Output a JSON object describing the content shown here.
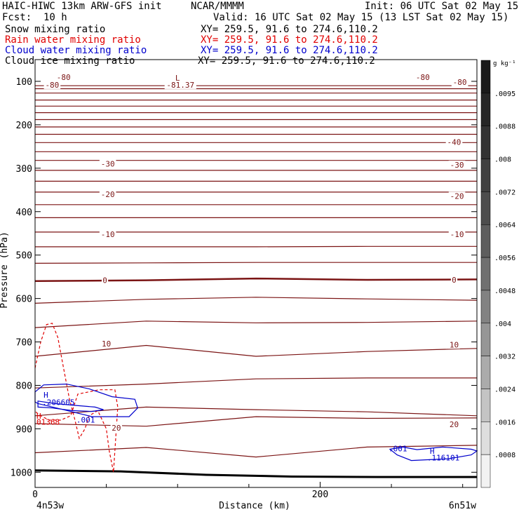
{
  "header": {
    "model": "HAIC-HIWC 13km ARW-GFS init",
    "org": "NCAR/MMMM",
    "init": "Init: 06 UTC Sat 02 May 15",
    "fcst_label": "Fcst:",
    "fcst_value": "10 h",
    "valid": "Valid: 16 UTC Sat 02 May 15 (13 LST Sat 02 May 15)",
    "fields": [
      {
        "name": "Snow mixing ratio",
        "xy": "XY= 259.5, 91.6 to 274.6,110.2",
        "color": "#000000"
      },
      {
        "name": "Rain water mixing ratio",
        "xy": "XY= 259.5, 91.6 to 274.6,110.2",
        "color": "#e00000"
      },
      {
        "name": "Cloud water mixing ratio",
        "xy": "XY= 259.5, 91.6 to 274.6,110.2",
        "color": "#0000cc"
      },
      {
        "name": "Cloud ice mixing ratio",
        "xy": "XY= 259.5, 91.6 to 274.6,110.2",
        "color": "#000000"
      }
    ]
  },
  "chart_data": {
    "type": "contour",
    "xlabel": "Distance (km)",
    "ylabel": "Pressure (hPa)",
    "xlim": [
      0,
      310
    ],
    "ylim": [
      1035,
      50
    ],
    "x_ticks": [
      {
        "v": 0,
        "label": "0"
      },
      {
        "v": 200,
        "label": "200"
      }
    ],
    "y_ticks": [
      {
        "v": 100,
        "label": "100"
      },
      {
        "v": 200,
        "label": "200"
      },
      {
        "v": 300,
        "label": "300"
      },
      {
        "v": 400,
        "label": "400"
      },
      {
        "v": 500,
        "label": "500"
      },
      {
        "v": 600,
        "label": "600"
      },
      {
        "v": 700,
        "label": "700"
      },
      {
        "v": 800,
        "label": "800"
      },
      {
        "v": 900,
        "label": "900"
      },
      {
        "v": 1000,
        "label": "1000"
      }
    ],
    "endpoint_left": "4n53w",
    "endpoint_right": "6n51w",
    "temperature_contours": [
      {
        "p": [
          110,
          110,
          110,
          110,
          110
        ]
      },
      {
        "p": [
          117,
          117,
          117,
          117,
          117
        ]
      },
      {
        "p": [
          127,
          127,
          127,
          127,
          127
        ]
      },
      {
        "p": [
          143,
          143,
          143,
          143,
          143
        ]
      },
      {
        "p": [
          157,
          157,
          157,
          157,
          157
        ]
      },
      {
        "p": [
          172,
          172,
          172,
          172,
          172
        ]
      },
      {
        "p": [
          188,
          188,
          188,
          188,
          188
        ]
      },
      {
        "p": [
          205,
          205,
          205,
          205,
          205
        ]
      },
      {
        "p": [
          222,
          222,
          222,
          222,
          222
        ]
      },
      {
        "p": [
          241,
          241,
          241,
          241,
          241
        ]
      },
      {
        "p": [
          262,
          262,
          262,
          262,
          262
        ]
      },
      {
        "p": [
          282,
          282,
          282,
          282,
          282
        ]
      },
      {
        "p": [
          305,
          305,
          305,
          305,
          305
        ]
      },
      {
        "p": [
          330,
          330,
          330,
          330,
          330
        ]
      },
      {
        "p": [
          355,
          355,
          355,
          355,
          355
        ]
      },
      {
        "p": [
          384,
          384,
          384,
          384,
          384
        ]
      },
      {
        "p": [
          414,
          414,
          414,
          414,
          414
        ]
      },
      {
        "p": [
          447,
          447,
          447,
          447,
          447
        ]
      },
      {
        "p": [
          481,
          481,
          481,
          480,
          480
        ]
      },
      {
        "p": [
          519,
          518,
          517,
          517,
          517
        ]
      },
      {
        "p": [
          560,
          558,
          554,
          557,
          556
        ],
        "bold": true
      },
      {
        "p": [
          611,
          602,
          597,
          601,
          604
        ]
      },
      {
        "p": [
          667,
          652,
          656,
          655,
          652
        ]
      },
      {
        "p": [
          733,
          708,
          733,
          722,
          715
        ]
      },
      {
        "p": [
          806,
          797,
          785,
          783,
          783
        ]
      },
      {
        "p": [
          870,
          850,
          856,
          861,
          870
        ]
      },
      {
        "p": [
          888,
          894,
          872,
          876,
          875
        ]
      },
      {
        "p": [
          955,
          943,
          965,
          942,
          938
        ]
      }
    ],
    "temperature_labels": [
      {
        "x": 20,
        "p": 90,
        "text": "-80"
      },
      {
        "x": 272,
        "p": 90,
        "text": "-80"
      },
      {
        "x": 12,
        "p": 108,
        "text": "-80"
      },
      {
        "x": 298,
        "p": 102,
        "text": "-80"
      },
      {
        "x": 294,
        "p": 240,
        "text": "-40"
      },
      {
        "x": 51,
        "p": 290,
        "text": "-30"
      },
      {
        "x": 296,
        "p": 292,
        "text": "-30"
      },
      {
        "x": 51,
        "p": 360,
        "text": "-20"
      },
      {
        "x": 296,
        "p": 364,
        "text": "-20"
      },
      {
        "x": 51,
        "p": 452,
        "text": "-10"
      },
      {
        "x": 296,
        "p": 452,
        "text": "-10"
      },
      {
        "x": 49,
        "p": 558,
        "text": "0"
      },
      {
        "x": 294,
        "p": 557,
        "text": "0"
      },
      {
        "x": 50,
        "p": 704,
        "text": "10"
      },
      {
        "x": 294,
        "p": 706,
        "text": "10"
      },
      {
        "x": 57,
        "p": 898,
        "text": "20"
      },
      {
        "x": 294,
        "p": 890,
        "text": "20"
      }
    ],
    "temperature_extrema": [
      {
        "x": 100,
        "p": 92,
        "text": "L"
      },
      {
        "x": 102,
        "p": 108,
        "text": "-81.37"
      }
    ],
    "terrain": [
      [
        0,
        996
      ],
      [
        60,
        998
      ],
      [
        120,
        1006
      ],
      [
        180,
        1010
      ],
      [
        240,
        1011
      ],
      [
        310,
        1011
      ]
    ],
    "rain_water": {
      "contour": [
        [
          0,
          760
        ],
        [
          4,
          700
        ],
        [
          8,
          660
        ],
        [
          12,
          657
        ],
        [
          16,
          690
        ],
        [
          20,
          760
        ],
        [
          24,
          830
        ],
        [
          28,
          880
        ],
        [
          31,
          922
        ],
        [
          35,
          900
        ],
        [
          38,
          870
        ],
        [
          44,
          858
        ],
        [
          50,
          900
        ],
        [
          52,
          950
        ],
        [
          55,
          1000
        ],
        [
          58,
          850
        ],
        [
          56,
          810
        ],
        [
          45,
          810
        ],
        [
          30,
          820
        ],
        [
          25,
          870
        ],
        [
          18,
          880
        ],
        [
          10,
          880
        ],
        [
          4,
          870
        ],
        [
          0,
          860
        ]
      ],
      "labels": [
        {
          "x": 0,
          "p": 870,
          "text": "H"
        },
        {
          "x": 0,
          "p": 884,
          "text": "01368"
        }
      ]
    },
    "cloud_water": {
      "contours": [
        [
          [
            0,
            815
          ],
          [
            6,
            799
          ],
          [
            22,
            797
          ],
          [
            38,
            808
          ],
          [
            54,
            826
          ],
          [
            70,
            832
          ],
          [
            72,
            852
          ],
          [
            66,
            872
          ],
          [
            40,
            872
          ],
          [
            15,
            852
          ],
          [
            2,
            842
          ],
          [
            0,
            838
          ]
        ],
        [
          [
            2,
            836
          ],
          [
            14,
            842
          ],
          [
            28,
            846
          ],
          [
            42,
            850
          ],
          [
            48,
            856
          ],
          [
            40,
            860
          ],
          [
            26,
            858
          ],
          [
            12,
            852
          ],
          [
            2,
            850
          ]
        ],
        [
          [
            249,
            947
          ],
          [
            258,
            942
          ],
          [
            268,
            948
          ],
          [
            286,
            942
          ],
          [
            306,
            947
          ],
          [
            310,
            951
          ],
          [
            306,
            960
          ],
          [
            290,
            969
          ],
          [
            264,
            973
          ],
          [
            254,
            960
          ]
        ]
      ],
      "labels": [
        {
          "x": 5,
          "p": 822,
          "text": "H"
        },
        {
          "x": 4,
          "p": 839,
          "text": ".206605"
        },
        {
          "x": 28,
          "p": 879,
          "text": ".001"
        },
        {
          "x": 247,
          "p": 945,
          "text": ".001"
        },
        {
          "x": 276,
          "p": 951,
          "text": "H"
        },
        {
          "x": 274,
          "p": 966,
          "text": ".116101"
        }
      ]
    },
    "colorbar": {
      "unit": "g kg⁻¹",
      "labels": [
        ".0095",
        ".0088",
        ".008",
        ".0072",
        ".0064",
        ".0056",
        ".0048",
        ".004",
        ".0032",
        ".0024",
        ".0016",
        ".0008"
      ],
      "shades": [
        "#1a1a1a",
        "#262626",
        "#333333",
        "#404040",
        "#4d4d4d",
        "#5e5e5e",
        "#707070",
        "#828282",
        "#969696",
        "#ababab",
        "#c4c4c4",
        "#dedede",
        "#f2f2f2"
      ]
    },
    "colors": {
      "temperature": "#7b1414",
      "rain": "#e00000",
      "cloud": "#0000cc",
      "terrain": "#000000"
    }
  }
}
